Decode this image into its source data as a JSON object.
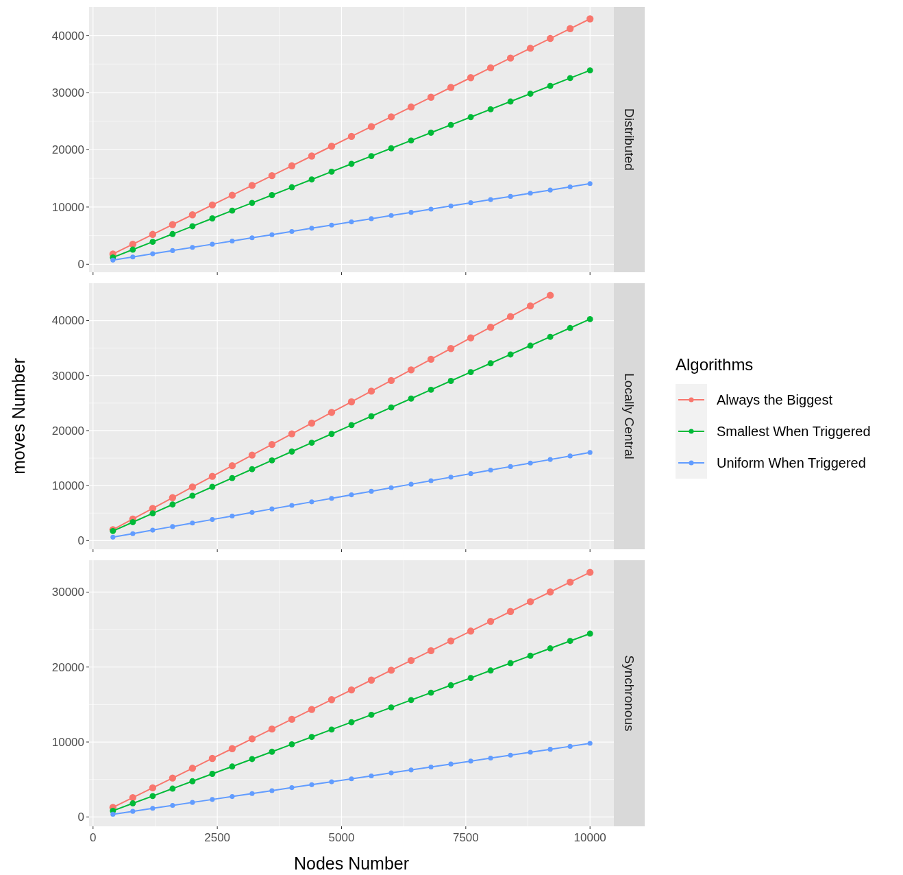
{
  "chart_data": [
    {
      "type": "line",
      "annotations": [
        "Distributed"
      ],
      "x": [
        400,
        800,
        1200,
        1600,
        2000,
        2400,
        2800,
        3200,
        3600,
        4000,
        4400,
        4800,
        5200,
        5600,
        6000,
        6400,
        6800,
        7200,
        7600,
        8000,
        8400,
        8800,
        9200,
        9600,
        10000
      ],
      "xlim": [
        -80,
        10480
      ],
      "xticks": [
        0,
        2500,
        5000,
        7500,
        10000
      ],
      "ylim": [
        -1400,
        45000
      ],
      "yticks": [
        0,
        10000,
        20000,
        30000,
        40000
      ],
      "grid": true,
      "marker": "circle",
      "tick_labels": "y",
      "legend": false,
      "series": [
        {
          "color": "#f8766d",
          "values": [
            1790,
            3500,
            5220,
            6930,
            8640,
            10360,
            12070,
            13780,
            15490,
            17210,
            18920,
            20630,
            22350,
            24060,
            25770,
            27490,
            29200,
            30910,
            32620,
            34340,
            36050,
            37760,
            39480,
            41190,
            42900
          ]
        },
        {
          "color": "#00ba38",
          "values": [
            1190,
            2550,
            3920,
            5280,
            6640,
            8010,
            9370,
            10730,
            12090,
            13460,
            14820,
            16180,
            17550,
            18910,
            20270,
            21640,
            23000,
            24360,
            25720,
            27090,
            28450,
            29810,
            31180,
            32540,
            33900
          ]
        },
        {
          "color": "#619cff",
          "values": [
            720,
            1270,
            1830,
            2390,
            2940,
            3500,
            4060,
            4620,
            5170,
            5730,
            6290,
            6840,
            7400,
            7960,
            8520,
            9070,
            9630,
            10190,
            10750,
            11300,
            11860,
            12420,
            12970,
            13530,
            14090
          ]
        }
      ]
    },
    {
      "type": "line",
      "annotations": [
        "Locally Central"
      ],
      "ylabel": "moves Number",
      "legend_title": "Algorithms",
      "legend": "right",
      "x": [
        400,
        800,
        1200,
        1600,
        2000,
        2400,
        2800,
        3200,
        3600,
        4000,
        4400,
        4800,
        5200,
        5600,
        6000,
        6400,
        6800,
        7200,
        7600,
        8000,
        8400,
        8800,
        9200,
        9600,
        10000
      ],
      "xlim": [
        -80,
        10480
      ],
      "xticks": [
        0,
        2500,
        5000,
        7500,
        10000
      ],
      "ylim": [
        -1580,
        46800
      ],
      "yticks": [
        0,
        10000,
        20000,
        30000,
        40000
      ],
      "grid": true,
      "marker": "circle",
      "tick_labels": "y",
      "series": [
        {
          "name": "Always the Biggest",
          "color": "#f8766d",
          "values": [
            1990,
            3930,
            5860,
            7800,
            9740,
            11680,
            13610,
            15550,
            17490,
            19420,
            21360,
            23300,
            25230,
            27170,
            29110,
            31050,
            32980,
            34920,
            36860,
            38790,
            40730,
            42670,
            44600,
            null,
            null
          ]
        },
        {
          "name": "Smallest When Triggered",
          "color": "#00ba38",
          "values": [
            1740,
            3350,
            4950,
            6560,
            8160,
            9770,
            11370,
            12980,
            14580,
            16190,
            17790,
            19400,
            21000,
            22610,
            24210,
            25820,
            27420,
            29030,
            30630,
            32240,
            33840,
            35450,
            37050,
            38660,
            40260
          ]
        },
        {
          "name": "Uniform When Triggered",
          "color": "#619cff",
          "values": [
            620,
            1260,
            1900,
            2550,
            3190,
            3830,
            4470,
            5110,
            5760,
            6400,
            7040,
            7680,
            8320,
            8970,
            9610,
            10250,
            10890,
            11530,
            12180,
            12820,
            13460,
            14100,
            14740,
            15390,
            16030
          ]
        }
      ]
    },
    {
      "type": "line",
      "annotations": [
        "Synchronous"
      ],
      "xlabel": "Nodes Number",
      "x": [
        400,
        800,
        1200,
        1600,
        2000,
        2400,
        2800,
        3200,
        3600,
        4000,
        4400,
        4800,
        5200,
        5600,
        6000,
        6400,
        6800,
        7200,
        7600,
        8000,
        8400,
        8800,
        9200,
        9600,
        10000
      ],
      "xlim": [
        -80,
        10480
      ],
      "xticks": [
        0,
        2500,
        5000,
        7500,
        10000
      ],
      "ylim": [
        -1250,
        34250
      ],
      "yticks": [
        0,
        10000,
        20000,
        30000
      ],
      "grid": true,
      "marker": "circle",
      "legend": false,
      "series": [
        {
          "color": "#f8766d",
          "values": [
            1270,
            2580,
            3880,
            5190,
            6500,
            7810,
            9110,
            10420,
            11730,
            13030,
            14340,
            15650,
            16950,
            18260,
            19570,
            20880,
            22180,
            23490,
            24800,
            26100,
            27410,
            28720,
            30020,
            31330,
            32640
          ]
        },
        {
          "color": "#00ba38",
          "values": [
            820,
            1810,
            2790,
            3780,
            4760,
            5750,
            6730,
            7720,
            8700,
            9690,
            10670,
            11660,
            12640,
            13630,
            14610,
            15600,
            16580,
            17570,
            18550,
            19540,
            20520,
            21510,
            22490,
            23480,
            24460
          ]
        },
        {
          "color": "#619cff",
          "values": [
            360,
            750,
            1150,
            1540,
            1940,
            2330,
            2720,
            3120,
            3510,
            3910,
            4300,
            4690,
            5090,
            5480,
            5880,
            6270,
            6660,
            7060,
            7450,
            7850,
            8240,
            8630,
            9030,
            9420,
            9820
          ]
        }
      ]
    }
  ]
}
